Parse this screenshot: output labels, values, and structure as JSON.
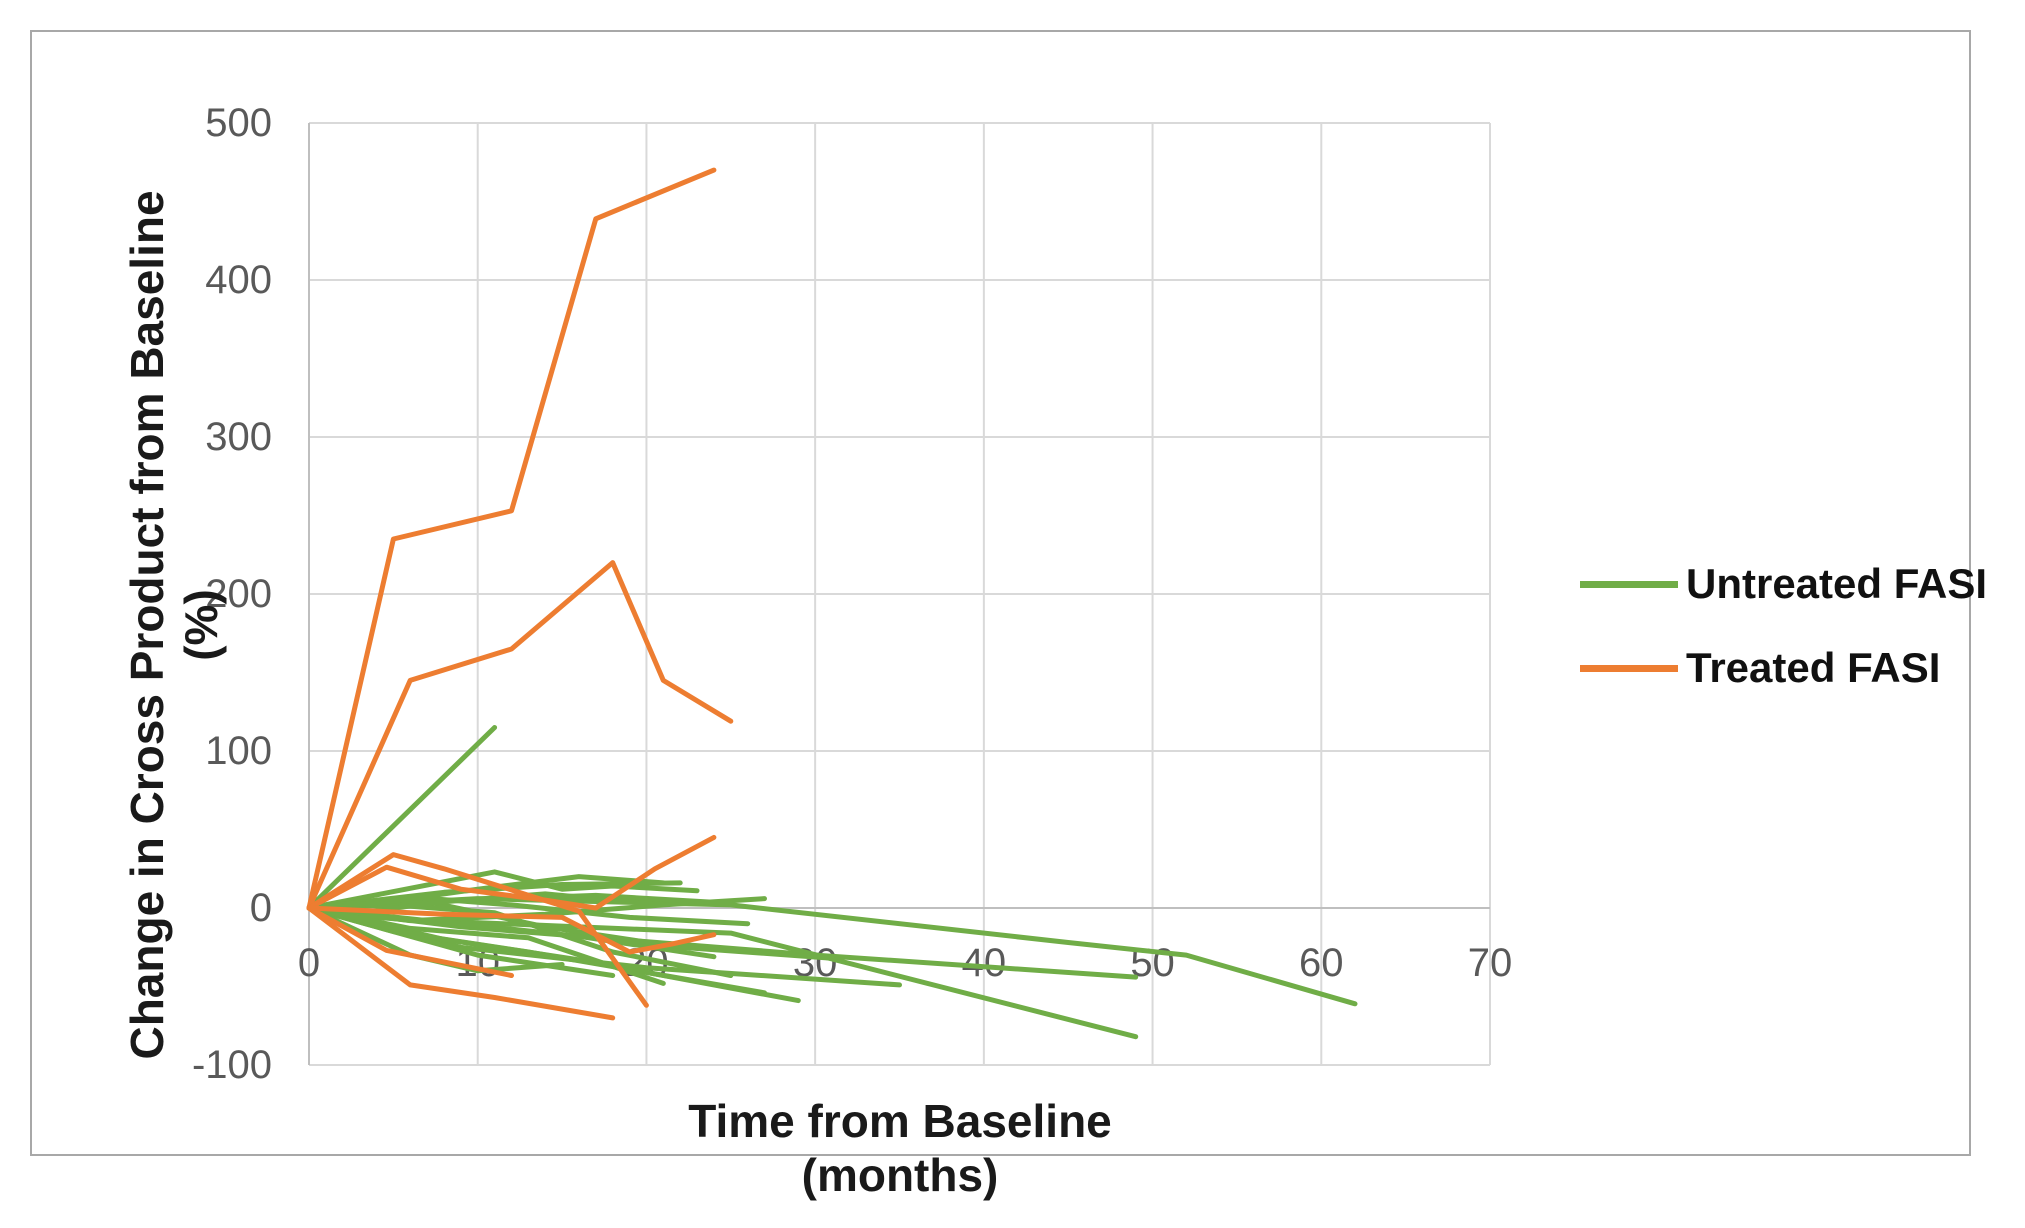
{
  "chart_data": {
    "type": "line",
    "title": "",
    "xlabel": "Time from Baseline (months)",
    "ylabel": "Change in Cross Product from Baseline (%)",
    "xlim": [
      0,
      70
    ],
    "ylim": [
      -100,
      500
    ],
    "x_ticks": [
      0,
      10,
      20,
      30,
      40,
      50,
      60,
      70
    ],
    "y_ticks": [
      500,
      400,
      300,
      200,
      100,
      0,
      -100
    ],
    "grid": true,
    "legend_position": "right",
    "axis_color": "#bfbfbf",
    "gridline_color": "#d9d9d9",
    "tick_label_color": "#595959",
    "series": [
      {
        "name": "Untreated FASI",
        "color": "#70AD47",
        "lines": [
          [
            [
              0,
              0
            ],
            [
              11,
              115
            ]
          ],
          [
            [
              0,
              0
            ],
            [
              10,
              6
            ],
            [
              25,
              2
            ],
            [
              45,
              -22
            ],
            [
              52,
              -30
            ],
            [
              62,
              -61
            ]
          ],
          [
            [
              0,
              0
            ],
            [
              9,
              -12
            ],
            [
              30,
              -30
            ],
            [
              49,
              -44
            ]
          ],
          [
            [
              0,
              0
            ],
            [
              7,
              -8
            ],
            [
              25,
              -16
            ],
            [
              49,
              -82
            ]
          ],
          [
            [
              0,
              0
            ],
            [
              9,
              -25
            ],
            [
              20,
              -38
            ],
            [
              35,
              -49
            ]
          ],
          [
            [
              0,
              0
            ],
            [
              11,
              23
            ],
            [
              15,
              12
            ],
            [
              18,
              14
            ],
            [
              23,
              11
            ]
          ],
          [
            [
              0,
              0
            ],
            [
              8,
              10
            ],
            [
              15,
              15
            ],
            [
              22,
              16
            ]
          ],
          [
            [
              0,
              0
            ],
            [
              6,
              -8
            ],
            [
              14,
              -4
            ],
            [
              21,
              2
            ],
            [
              27,
              6
            ]
          ],
          [
            [
              0,
              0
            ],
            [
              10,
              -30
            ],
            [
              18,
              -43
            ]
          ],
          [
            [
              0,
              0
            ],
            [
              5,
              -15
            ],
            [
              13,
              -28
            ],
            [
              27,
              -54
            ]
          ],
          [
            [
              0,
              0
            ],
            [
              8,
              -20
            ],
            [
              16,
              -33
            ],
            [
              29,
              -59
            ]
          ],
          [
            [
              0,
              0
            ],
            [
              9,
              5
            ],
            [
              17,
              8
            ],
            [
              25,
              3
            ]
          ],
          [
            [
              0,
              0
            ],
            [
              7,
              4
            ],
            [
              14,
              -12
            ],
            [
              22,
              -25
            ],
            [
              31,
              -32
            ]
          ],
          [
            [
              0,
              0
            ],
            [
              6,
              7
            ],
            [
              12,
              2
            ],
            [
              19,
              -6
            ],
            [
              26,
              -10
            ]
          ],
          [
            [
              0,
              0
            ],
            [
              4,
              -6
            ],
            [
              9,
              -10
            ],
            [
              16,
              -18
            ],
            [
              24,
              -31
            ]
          ],
          [
            [
              0,
              0
            ],
            [
              5,
              2
            ],
            [
              11,
              -3
            ],
            [
              18,
              -28
            ],
            [
              25,
              -43
            ]
          ],
          [
            [
              0,
              0
            ],
            [
              3,
              -3
            ],
            [
              8,
              4
            ],
            [
              14,
              9
            ],
            [
              20,
              3
            ]
          ],
          [
            [
              0,
              0
            ],
            [
              6,
              -13
            ],
            [
              13,
              -19
            ],
            [
              21,
              -48
            ]
          ],
          [
            [
              0,
              0
            ],
            [
              4,
              3
            ],
            [
              10,
              12
            ],
            [
              16,
              20
            ],
            [
              21,
              16
            ]
          ],
          [
            [
              0,
              0
            ],
            [
              6,
              -30
            ],
            [
              10,
              -40
            ],
            [
              15,
              -36
            ]
          ]
        ]
      },
      {
        "name": "Treated FASI",
        "color": "#ED7D31",
        "lines": [
          [
            [
              0,
              0
            ],
            [
              5,
              235
            ],
            [
              12,
              253
            ],
            [
              17,
              439
            ],
            [
              24,
              470
            ]
          ],
          [
            [
              0,
              0
            ],
            [
              6,
              145
            ],
            [
              12,
              165
            ],
            [
              18,
              220
            ],
            [
              21,
              145
            ],
            [
              25,
              119
            ]
          ],
          [
            [
              0,
              0
            ],
            [
              5,
              34
            ],
            [
              8,
              25
            ],
            [
              16,
              -2
            ],
            [
              20,
              -62
            ]
          ],
          [
            [
              0,
              0
            ],
            [
              6,
              -49
            ],
            [
              11,
              -57
            ],
            [
              18,
              -70
            ]
          ],
          [
            [
              0,
              0
            ],
            [
              4.6,
              -27
            ],
            [
              12,
              -43
            ]
          ],
          [
            [
              0,
              0
            ],
            [
              4.6,
              26
            ],
            [
              9,
              12
            ],
            [
              14,
              5
            ],
            [
              17,
              0
            ],
            [
              20.5,
              25
            ],
            [
              24,
              45
            ]
          ],
          [
            [
              0,
              0
            ],
            [
              8,
              -4
            ],
            [
              15,
              -6
            ],
            [
              19,
              -28
            ],
            [
              21.5,
              -23
            ],
            [
              24,
              -17
            ]
          ]
        ]
      }
    ]
  },
  "legend": {
    "items": [
      {
        "label": "Untreated FASI",
        "color": "#70AD47"
      },
      {
        "label": "Treated FASI",
        "color": "#ED7D31"
      }
    ]
  }
}
